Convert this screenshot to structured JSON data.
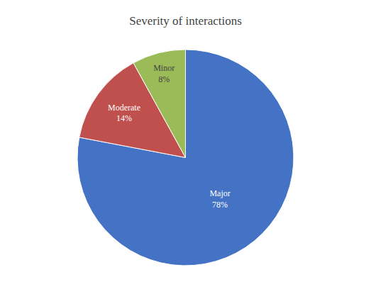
{
  "chart_data": {
    "type": "pie",
    "title": "Severity of interactions",
    "categories": [
      "Major",
      "Moderate",
      "Minor"
    ],
    "values": [
      78,
      14,
      8
    ],
    "value_labels": [
      "78%",
      "14%",
      "8%"
    ],
    "colors": [
      "#4472C4",
      "#C0504D",
      "#9BBB59"
    ],
    "data_labels": true
  }
}
